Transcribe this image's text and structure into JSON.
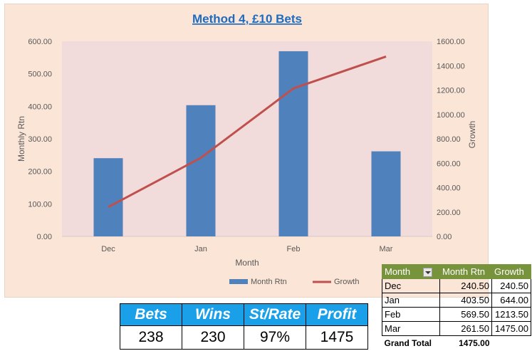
{
  "chart_data": {
    "type": "bar",
    "title": "Method 4, £10 Bets",
    "xlabel": "Month",
    "ylabel": "Monthly Rtn",
    "y2label": "Growth",
    "categories": [
      "Dec",
      "Jan",
      "Feb",
      "Mar"
    ],
    "ylim": [
      0,
      600
    ],
    "y2lim": [
      0,
      1600
    ],
    "yticks": [
      "0.00",
      "100.00",
      "200.00",
      "300.00",
      "400.00",
      "500.00",
      "600.00"
    ],
    "y2ticks": [
      "0.00",
      "200.00",
      "400.00",
      "600.00",
      "800.00",
      "1000.00",
      "1200.00",
      "1400.00",
      "1600.00"
    ],
    "series": [
      {
        "name": "Month Rtn",
        "type": "bar",
        "axis": "left",
        "color": "#4f81bd",
        "values": [
          240.5,
          403.5,
          569.5,
          261.5
        ]
      },
      {
        "name": "Growth",
        "type": "line",
        "axis": "right",
        "color": "#c0504d",
        "values": [
          240.5,
          644.0,
          1213.5,
          1475.0
        ]
      }
    ],
    "legend": "bottom",
    "grid": false
  },
  "stats": {
    "headers": [
      "Bets",
      "Wins",
      "St/Rate",
      "Profit"
    ],
    "values": [
      "238",
      "230",
      "97%",
      "1475"
    ]
  },
  "pivot": {
    "headers": [
      "Month",
      "Month Rtn",
      "Growth"
    ],
    "rows": [
      [
        "Dec",
        "240.50",
        "240.50"
      ],
      [
        "Jan",
        "403.50",
        "644.00"
      ],
      [
        "Feb",
        "569.50",
        "1213.50"
      ],
      [
        "Mar",
        "261.50",
        "1475.00"
      ]
    ],
    "total_label": "Grand Total",
    "total_value": "1475.00"
  }
}
